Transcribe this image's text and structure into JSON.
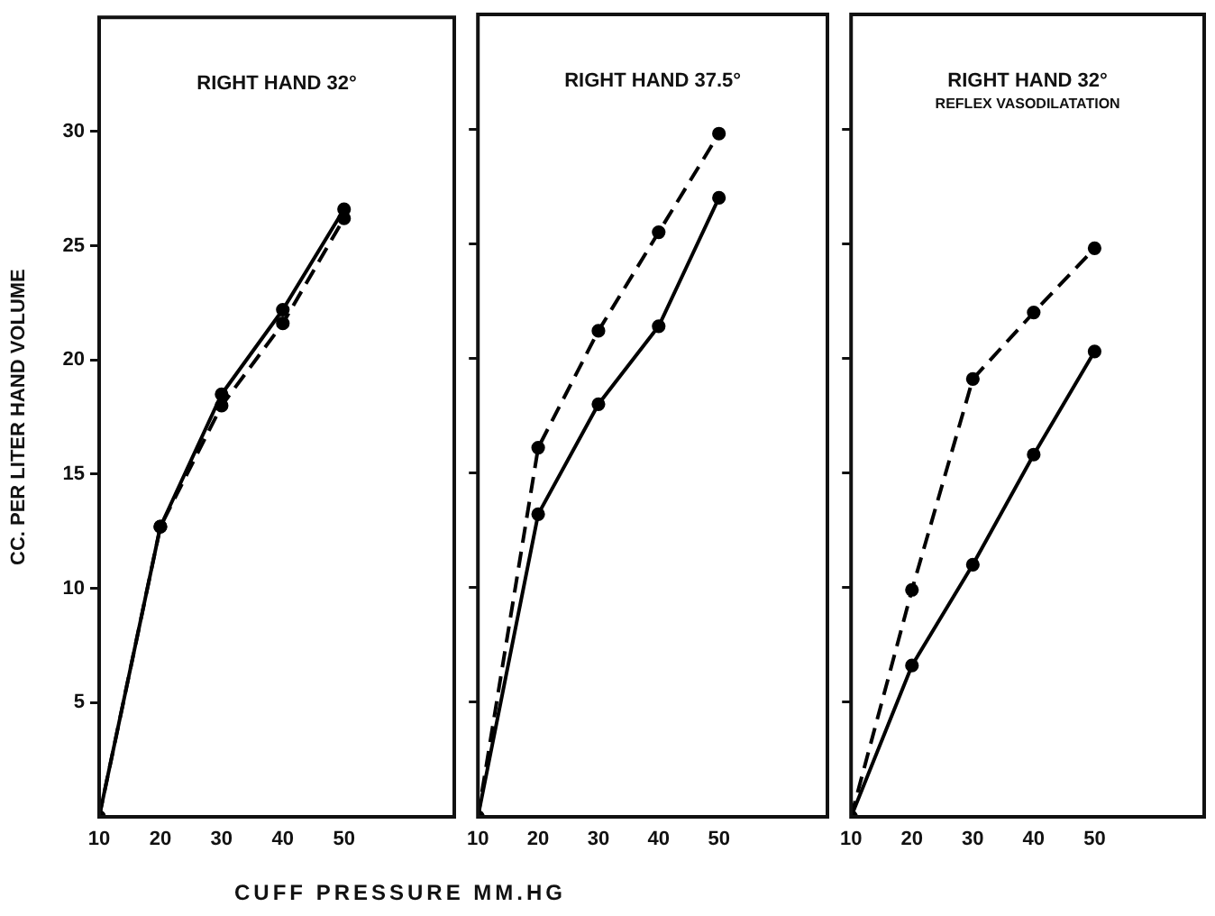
{
  "chart_data": [
    {
      "type": "line",
      "title": "RIGHT HAND 32°",
      "ylabel": "CC. PER LITER HAND VOLUME",
      "x": [
        10,
        20,
        30,
        40,
        50
      ],
      "xlim": [
        10,
        68
      ],
      "xticks": [
        10,
        20,
        30,
        40,
        50
      ],
      "ylim": [
        0,
        35
      ],
      "yticks": [
        5,
        10,
        15,
        20,
        25,
        30
      ],
      "grid": false,
      "legend": false,
      "marker": "circle",
      "series": [
        {
          "color": "#000000",
          "line_style": "solid",
          "values": [
            0,
            12.7,
            18.5,
            22.2,
            26.6
          ]
        },
        {
          "color": "#000000",
          "line_style": "dashed",
          "values": [
            0,
            12.7,
            18.0,
            21.6,
            26.2
          ]
        }
      ]
    },
    {
      "type": "line",
      "title": "RIGHT HAND 37.5°",
      "xlabel": "CUFF PRESSURE MM.HG",
      "x": [
        10,
        20,
        30,
        40,
        50
      ],
      "xlim": [
        10,
        68
      ],
      "xticks": [
        10,
        20,
        30,
        40,
        50
      ],
      "ylim": [
        0,
        35
      ],
      "yticks": [
        5,
        10,
        15,
        20,
        25,
        30
      ],
      "tick_labels": "x",
      "grid": false,
      "legend": false,
      "marker": "circle",
      "series": [
        {
          "color": "#000000",
          "line_style": "solid",
          "values": [
            0,
            13.2,
            18.0,
            21.4,
            27.0
          ]
        },
        {
          "color": "#000000",
          "line_style": "dashed",
          "values": [
            0,
            16.1,
            21.2,
            25.5,
            29.8
          ]
        }
      ]
    },
    {
      "type": "line",
      "title": "RIGHT HAND 32°",
      "subtitle": "REFLEX VASODILATATION",
      "x": [
        10,
        20,
        30,
        40,
        50
      ],
      "xlim": [
        10,
        68
      ],
      "xticks": [
        10,
        20,
        30,
        40,
        50
      ],
      "ylim": [
        0,
        35
      ],
      "yticks": [
        5,
        10,
        15,
        20,
        25,
        30
      ],
      "tick_labels": "x",
      "grid": false,
      "legend": false,
      "marker": "circle",
      "series": [
        {
          "color": "#000000",
          "line_style": "solid",
          "values": [
            0,
            6.6,
            11.0,
            15.8,
            20.3
          ]
        },
        {
          "color": "#000000",
          "line_style": "dashed",
          "values": [
            0,
            9.9,
            19.1,
            22.0,
            24.8
          ]
        }
      ]
    }
  ]
}
